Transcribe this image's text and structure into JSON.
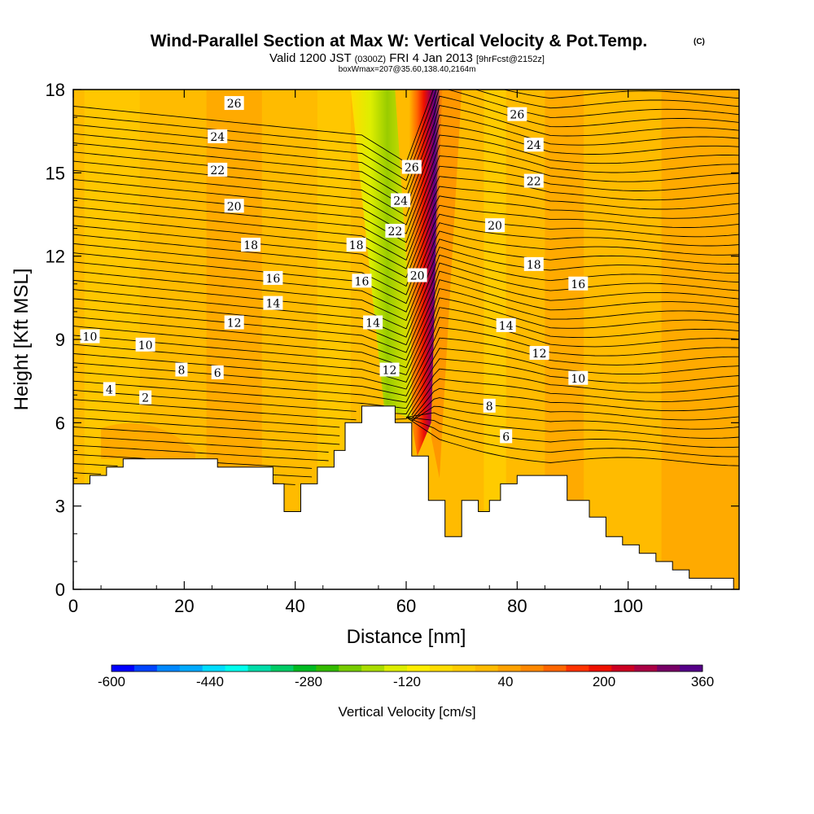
{
  "header": {
    "title": "Wind-Parallel Section at Max W: Vertical Velocity & Pot.Temp.",
    "title_unit": "(C)",
    "subtitle_prefix": "Valid 1200 JST",
    "subtitle_z": "(0300Z)",
    "subtitle_date": "FRI 4 Jan 2013",
    "subtitle_fcst": "[9hrFcst@2152z]",
    "subtitle_box": "boxWmax=207@35.60,138.40,2164m"
  },
  "chart_data": {
    "type": "heatmap",
    "xlabel": "Distance [nm]",
    "ylabel": "Height [Kft MSL]",
    "xlim": [
      0,
      120
    ],
    "ylim": [
      0,
      18
    ],
    "xticks": [
      0,
      20,
      40,
      60,
      80,
      100
    ],
    "yticks": [
      0,
      3,
      6,
      9,
      12,
      15,
      18
    ],
    "colorbar": {
      "label": "Vertical Velocity [cm/s]",
      "min": -600,
      "max": 360,
      "step": 40,
      "tick_values": [
        -600,
        -440,
        -280,
        -120,
        40,
        200,
        360
      ],
      "colors": [
        "#0000ff",
        "#0044ff",
        "#0088ff",
        "#00aaff",
        "#00ddff",
        "#00ffee",
        "#00ddaa",
        "#00cc66",
        "#00bb22",
        "#33bb00",
        "#77cc00",
        "#aadd00",
        "#ddee00",
        "#ffee00",
        "#ffdd00",
        "#ffcc00",
        "#ffbb00",
        "#ffa200",
        "#ff8800",
        "#ff6600",
        "#ff3300",
        "#ee1100",
        "#cc0022",
        "#aa0044",
        "#770066",
        "#550088"
      ]
    },
    "terrain_profile": [
      [
        0,
        3.8
      ],
      [
        3,
        3.8
      ],
      [
        3,
        4.1
      ],
      [
        6,
        4.1
      ],
      [
        6,
        4.4
      ],
      [
        9,
        4.4
      ],
      [
        9,
        4.7
      ],
      [
        26,
        4.7
      ],
      [
        26,
        4.4
      ],
      [
        36,
        4.4
      ],
      [
        36,
        3.8
      ],
      [
        38,
        3.8
      ],
      [
        38,
        2.8
      ],
      [
        41,
        2.8
      ],
      [
        41,
        3.8
      ],
      [
        44,
        3.8
      ],
      [
        44,
        4.4
      ],
      [
        47,
        4.4
      ],
      [
        47,
        5.0
      ],
      [
        49,
        5.0
      ],
      [
        49,
        6.0
      ],
      [
        52,
        6.0
      ],
      [
        52,
        6.6
      ],
      [
        58,
        6.6
      ],
      [
        58,
        6.0
      ],
      [
        61,
        6.0
      ],
      [
        61,
        4.8
      ],
      [
        64,
        4.8
      ],
      [
        64,
        3.2
      ],
      [
        67,
        3.2
      ],
      [
        67,
        1.9
      ],
      [
        70,
        1.9
      ],
      [
        70,
        3.2
      ],
      [
        73,
        3.2
      ],
      [
        73,
        2.8
      ],
      [
        75,
        2.8
      ],
      [
        75,
        3.2
      ],
      [
        77,
        3.2
      ],
      [
        77,
        3.8
      ],
      [
        80,
        3.8
      ],
      [
        80,
        4.1
      ],
      [
        89,
        4.1
      ],
      [
        89,
        3.2
      ],
      [
        93,
        3.2
      ],
      [
        93,
        2.6
      ],
      [
        96,
        2.6
      ],
      [
        96,
        1.9
      ],
      [
        99,
        1.9
      ],
      [
        99,
        1.6
      ],
      [
        102,
        1.6
      ],
      [
        102,
        1.3
      ],
      [
        105,
        1.3
      ],
      [
        105,
        1.0
      ],
      [
        108,
        1.0
      ],
      [
        108,
        0.7
      ],
      [
        111,
        0.7
      ],
      [
        111,
        0.4
      ],
      [
        119,
        0.4
      ],
      [
        119,
        0
      ]
    ],
    "theta_contours": [
      {
        "label": "2",
        "value": 2,
        "x": 13.0,
        "y": 6.9
      },
      {
        "label": "4",
        "value": 4,
        "x": 6.5,
        "y": 7.2
      },
      {
        "label": "6",
        "value": 6,
        "x": 26.0,
        "y": 7.8
      },
      {
        "label": "8",
        "value": 8,
        "x": 19.5,
        "y": 7.9
      },
      {
        "label": "10",
        "value": 10,
        "x": 3.0,
        "y": 9.1
      },
      {
        "label": "10",
        "value": 10,
        "x": 13.0,
        "y": 8.8
      },
      {
        "label": "12",
        "value": 12,
        "x": 29.0,
        "y": 9.6
      },
      {
        "label": "14",
        "value": 14,
        "x": 36.0,
        "y": 10.3
      },
      {
        "label": "16",
        "value": 16,
        "x": 36.0,
        "y": 11.2
      },
      {
        "label": "18",
        "value": 18,
        "x": 32.0,
        "y": 12.4
      },
      {
        "label": "20",
        "value": 20,
        "x": 29.0,
        "y": 13.8
      },
      {
        "label": "22",
        "value": 22,
        "x": 26.0,
        "y": 15.1
      },
      {
        "label": "24",
        "value": 24,
        "x": 26.0,
        "y": 16.3
      },
      {
        "label": "26",
        "value": 26,
        "x": 29.0,
        "y": 17.5
      },
      {
        "label": "18",
        "value": 18,
        "x": 51.0,
        "y": 12.4
      },
      {
        "label": "16",
        "value": 16,
        "x": 52.0,
        "y": 11.1
      },
      {
        "label": "14",
        "value": 14,
        "x": 54.0,
        "y": 9.6
      },
      {
        "label": "12",
        "value": 12,
        "x": 57.0,
        "y": 7.9
      },
      {
        "label": "22",
        "value": 22,
        "x": 58.0,
        "y": 12.9
      },
      {
        "label": "24",
        "value": 24,
        "x": 59.0,
        "y": 14.0
      },
      {
        "label": "26",
        "value": 26,
        "x": 61.0,
        "y": 15.2
      },
      {
        "label": "20",
        "value": 20,
        "x": 62.0,
        "y": 11.3
      },
      {
        "label": "26",
        "value": 26,
        "x": 80.0,
        "y": 17.1
      },
      {
        "label": "24",
        "value": 24,
        "x": 83.0,
        "y": 16.0
      },
      {
        "label": "22",
        "value": 22,
        "x": 83.0,
        "y": 14.7
      },
      {
        "label": "20",
        "value": 20,
        "x": 76.0,
        "y": 13.1
      },
      {
        "label": "18",
        "value": 18,
        "x": 83.0,
        "y": 11.7
      },
      {
        "label": "16",
        "value": 16,
        "x": 91.0,
        "y": 11.0
      },
      {
        "label": "14",
        "value": 14,
        "x": 78.0,
        "y": 9.5
      },
      {
        "label": "12",
        "value": 12,
        "x": 84.0,
        "y": 8.5
      },
      {
        "label": "10",
        "value": 10,
        "x": 91.0,
        "y": 7.6
      },
      {
        "label": "8",
        "value": 8,
        "x": 75.0,
        "y": 6.6
      },
      {
        "label": "6",
        "value": 6,
        "x": 78.0,
        "y": 5.5
      }
    ]
  }
}
